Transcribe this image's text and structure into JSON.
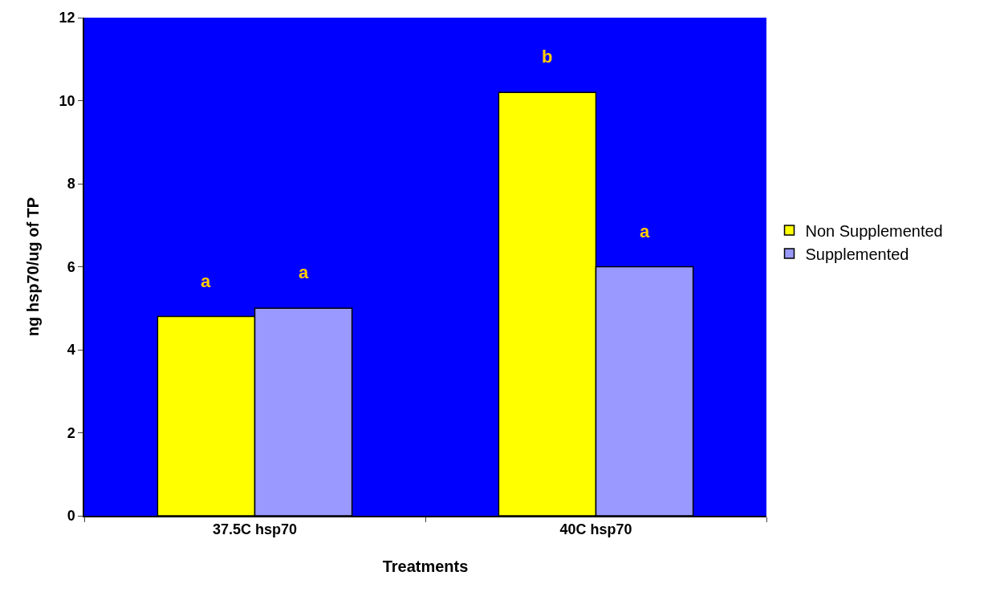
{
  "chart_data": {
    "type": "bar",
    "xlabel": "Treatments",
    "ylabel": "ng hsp70/ug of TP",
    "categories": [
      "37.5C hsp70",
      "40C hsp70"
    ],
    "series": [
      {
        "name": "Non Supplemented",
        "color": "#ffff00",
        "values": [
          4.8,
          10.2
        ]
      },
      {
        "name": "Supplemented",
        "color": "#9999ff",
        "values": [
          5.0,
          6.0
        ]
      }
    ],
    "ylim": [
      0,
      12
    ],
    "yticks": [
      0,
      2,
      4,
      6,
      8,
      10,
      12
    ],
    "grid": false,
    "legend": "right",
    "annotations": [
      "a",
      "a",
      "b",
      "a"
    ]
  }
}
